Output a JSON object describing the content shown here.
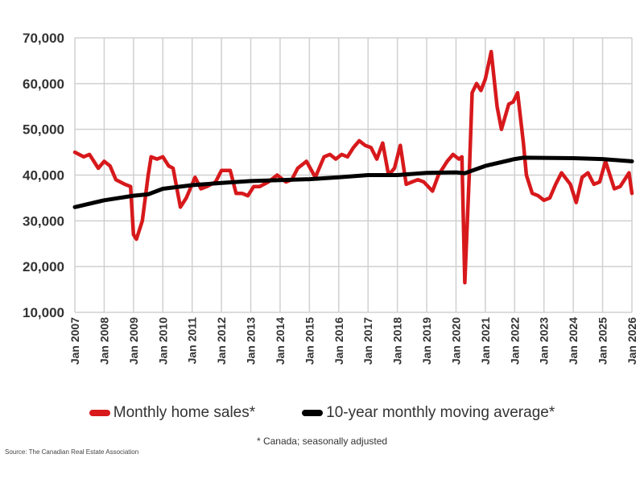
{
  "chart_data": {
    "type": "line",
    "xlabel": "",
    "ylabel": "",
    "ylim": [
      10000,
      70000
    ],
    "yticks": [
      "10,000",
      "20,000",
      "30,000",
      "40,000",
      "50,000",
      "60,000",
      "70,000"
    ],
    "ytick_values": [
      10000,
      20000,
      30000,
      40000,
      50000,
      60000,
      70000
    ],
    "xlim": [
      2007,
      2026
    ],
    "xticks": [
      "Jan 2007",
      "Jan 2008",
      "Jan 2009",
      "Jan 2010",
      "Jan 2011",
      "Jan 2012",
      "Jan 2013",
      "Jan 2014",
      "Jan 2015",
      "Jan 2016",
      "Jan 2017",
      "Jan 2018",
      "Jan 2019",
      "Jan 2020",
      "Jan 2021",
      "Jan 2022",
      "Jan 2023",
      "Jan 2024",
      "Jan 2025",
      "Jan 2026"
    ],
    "grid": true,
    "legend_position": "bottom",
    "series": [
      {
        "name": "Monthly home sales*",
        "color": "#d7191c",
        "x": [
          2007.0,
          2007.3,
          2007.5,
          2007.8,
          2008.0,
          2008.2,
          2008.4,
          2008.7,
          2008.9,
          2009.0,
          2009.1,
          2009.3,
          2009.5,
          2009.6,
          2009.8,
          2010.0,
          2010.2,
          2010.35,
          2010.6,
          2010.8,
          2011.0,
          2011.1,
          2011.3,
          2011.5,
          2011.8,
          2012.0,
          2012.3,
          2012.5,
          2012.7,
          2012.9,
          2013.1,
          2013.3,
          2013.6,
          2013.9,
          2014.2,
          2014.4,
          2014.6,
          2014.9,
          2015.2,
          2015.5,
          2015.7,
          2015.9,
          2016.1,
          2016.3,
          2016.5,
          2016.7,
          2016.9,
          2017.1,
          2017.3,
          2017.5,
          2017.7,
          2017.9,
          2018.1,
          2018.3,
          2018.5,
          2018.7,
          2018.9,
          2019.2,
          2019.4,
          2019.7,
          2019.9,
          2020.1,
          2020.2,
          2020.3,
          2020.45,
          2020.55,
          2020.7,
          2020.85,
          2021.0,
          2021.2,
          2021.4,
          2021.55,
          2021.8,
          2021.95,
          2022.1,
          2022.3,
          2022.4,
          2022.6,
          2022.8,
          2023.0,
          2023.2,
          2023.4,
          2023.6,
          2023.9,
          2024.1,
          2024.3,
          2024.5,
          2024.7,
          2024.9,
          2025.1,
          2025.4,
          2025.6,
          2025.9,
          2026.0
        ],
        "values": [
          45000,
          44000,
          44500,
          41500,
          43000,
          42000,
          39000,
          38000,
          37500,
          27000,
          26000,
          30000,
          40000,
          44000,
          43500,
          44000,
          42000,
          41500,
          33000,
          35000,
          38000,
          39500,
          37000,
          37500,
          38500,
          41000,
          41000,
          36000,
          36000,
          35500,
          37500,
          37500,
          38500,
          40000,
          38500,
          39000,
          41500,
          43000,
          39500,
          44000,
          44500,
          43500,
          44500,
          44000,
          46000,
          47500,
          46500,
          46000,
          43500,
          47000,
          40000,
          41500,
          46500,
          38000,
          38500,
          39000,
          38500,
          36500,
          40000,
          43000,
          44500,
          43500,
          44000,
          16500,
          40000,
          58000,
          60000,
          58500,
          61000,
          67000,
          55000,
          50000,
          55500,
          56000,
          58000,
          47000,
          40000,
          36000,
          35500,
          34500,
          35000,
          38000,
          40500,
          38000,
          34000,
          39500,
          40500,
          38000,
          38500,
          43000,
          37000,
          37500,
          40500,
          36000
        ]
      },
      {
        "name": "10-year monthly moving average*",
        "color": "#000000",
        "x": [
          2007,
          2008,
          2009,
          2009.5,
          2010,
          2011,
          2012,
          2013,
          2014,
          2015,
          2016,
          2017,
          2018,
          2019,
          2020,
          2020.3,
          2021,
          2022,
          2022.3,
          2024,
          2025,
          2026
        ],
        "values": [
          33000,
          34500,
          35500,
          35800,
          37000,
          37800,
          38300,
          38700,
          38900,
          39100,
          39500,
          40000,
          40000,
          40500,
          40600,
          40400,
          42000,
          43500,
          43800,
          43700,
          43500,
          43000
        ]
      }
    ]
  },
  "legend": {
    "items": [
      "Monthly home sales*",
      "10-year monthly moving average*"
    ]
  },
  "footnote": "* Canada; seasonally adjusted",
  "source": "Source: The Canadian Real Estate Association"
}
